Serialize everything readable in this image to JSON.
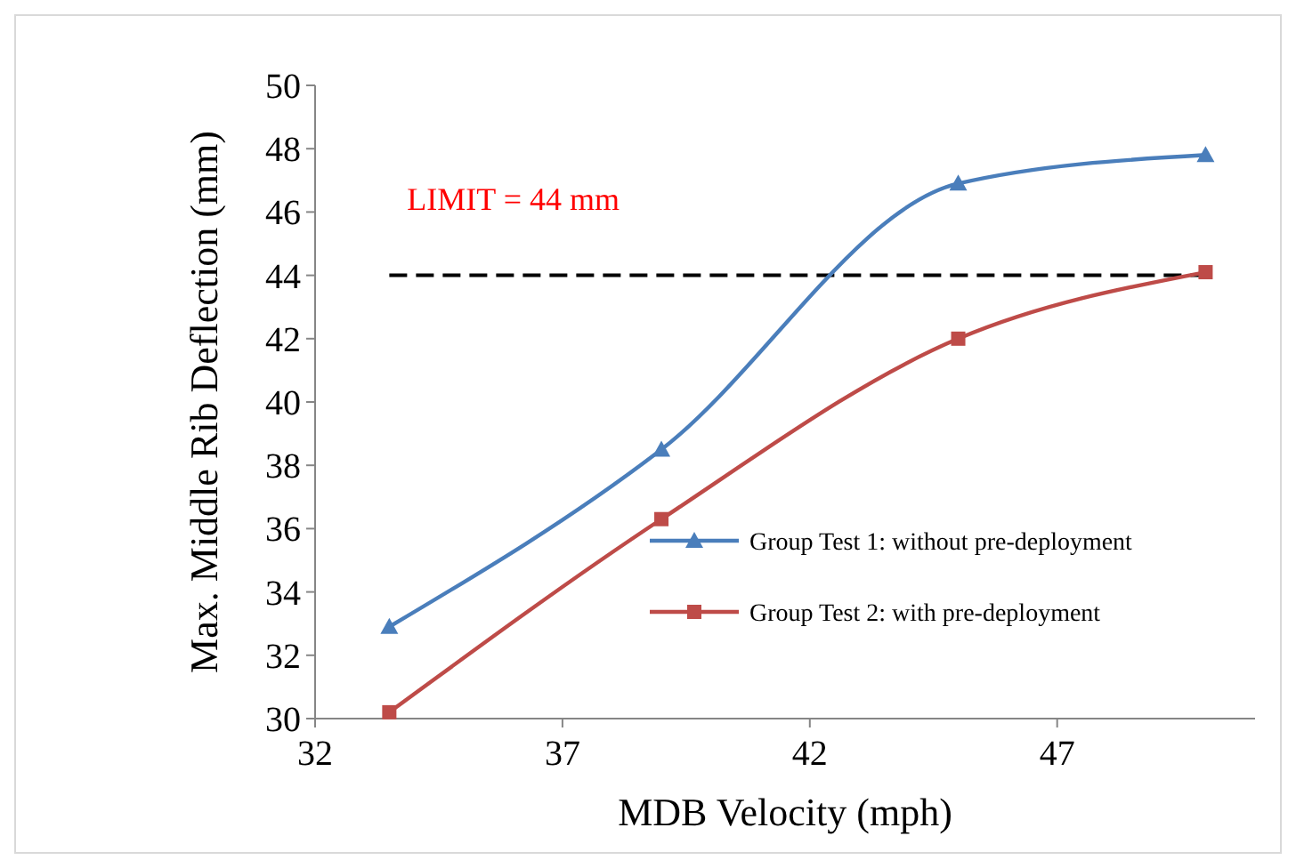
{
  "chart_data": {
    "type": "line",
    "xlabel": "MDB Velocity (mph)",
    "ylabel": "Max. Middle Rib Deflection (mm)",
    "xlim": [
      32,
      51
    ],
    "xticks": [
      32,
      37,
      42,
      47
    ],
    "ylim": [
      30,
      50
    ],
    "yticks": [
      30,
      32,
      34,
      36,
      38,
      40,
      42,
      44,
      46,
      48,
      50
    ],
    "series": [
      {
        "name": "Group Test 1: without pre-deployment",
        "color": "#4a7ebb",
        "marker": "triangle",
        "x": [
          33.5,
          39,
          45,
          50
        ],
        "values": [
          32.9,
          38.5,
          46.9,
          47.8
        ]
      },
      {
        "name": "Group Test 2: with pre-deployment",
        "color": "#be4b48",
        "marker": "square",
        "x": [
          33.5,
          39,
          45,
          50
        ],
        "values": [
          30.2,
          36.3,
          42.0,
          44.1
        ]
      }
    ],
    "ref_lines": [
      {
        "axis": "y",
        "value": 44,
        "label": "LIMIT = 44 mm",
        "color": "#000000",
        "line_style": "dashed"
      }
    ],
    "legend": "bottom right",
    "grid": false,
    "line_style": "solid"
  }
}
